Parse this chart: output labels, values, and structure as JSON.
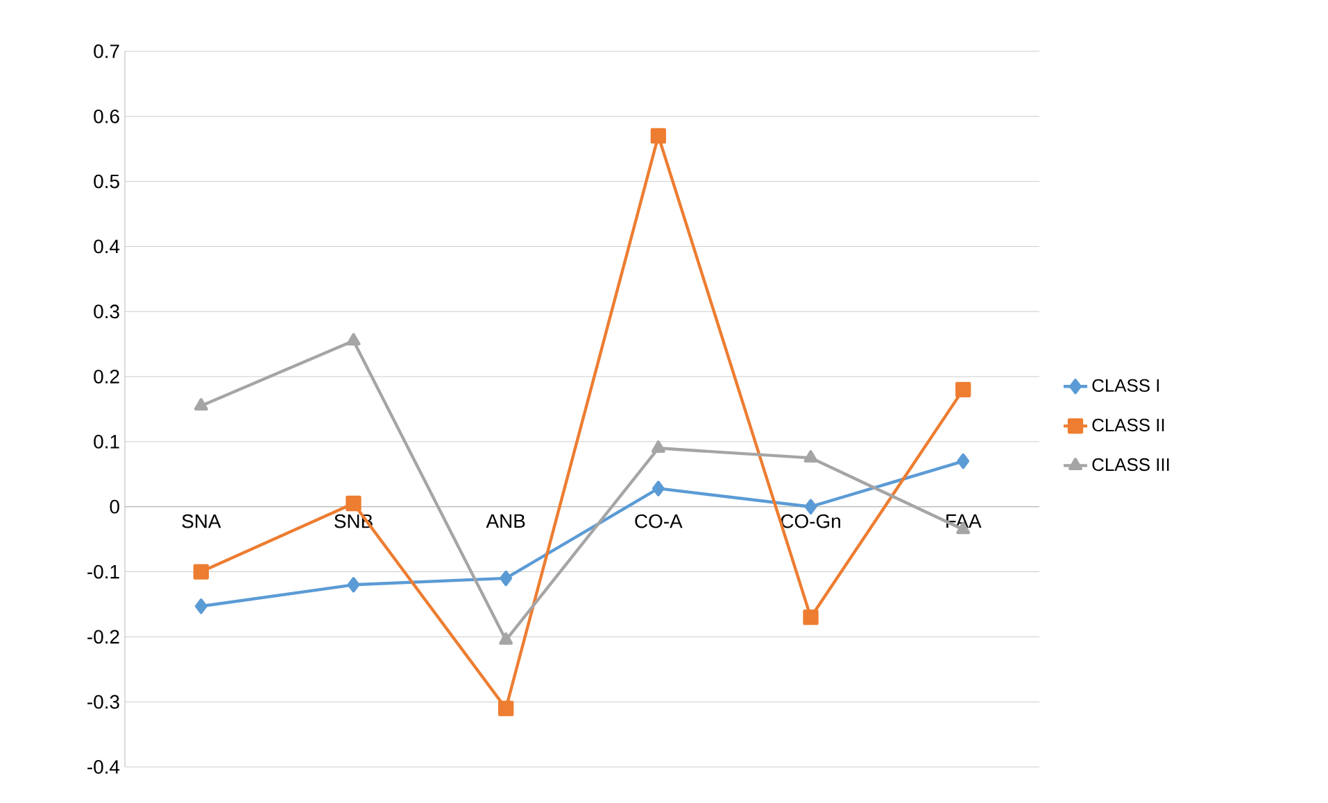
{
  "chart_data": {
    "type": "line",
    "categories": [
      "SNA",
      "SNB",
      "ANB",
      "CO-A",
      "CO-Gn",
      "FAA"
    ],
    "series": [
      {
        "name": "CLASS I",
        "color": "#5b9bd5",
        "marker": "diamond",
        "values": [
          -0.153,
          -0.12,
          -0.11,
          0.028,
          0.0,
          0.07
        ]
      },
      {
        "name": "CLASS II",
        "color": "#ed7d31",
        "marker": "square",
        "values": [
          -0.1,
          0.005,
          -0.31,
          0.57,
          -0.17,
          0.18
        ]
      },
      {
        "name": "CLASS III",
        "color": "#a5a5a5",
        "marker": "triangle",
        "values": [
          0.155,
          0.255,
          -0.205,
          0.09,
          0.075,
          -0.035
        ]
      }
    ],
    "ylim": [
      -0.4,
      0.7
    ],
    "yticks": [
      -0.4,
      -0.3,
      -0.2,
      -0.1,
      0,
      0.1,
      0.2,
      0.3,
      0.4,
      0.5,
      0.6,
      0.7
    ],
    "grid": "y",
    "legend": "right",
    "line_style": "solid"
  }
}
